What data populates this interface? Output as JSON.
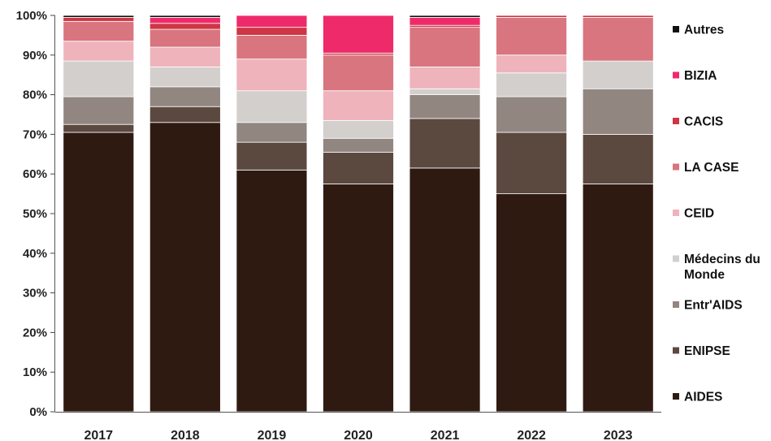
{
  "chart_data": {
    "type": "bar",
    "stacked": true,
    "categories": [
      "2017",
      "2018",
      "2019",
      "2020",
      "2021",
      "2022",
      "2023"
    ],
    "y_ticks": [
      "0%",
      "10%",
      "20%",
      "30%",
      "40%",
      "50%",
      "60%",
      "70%",
      "80%",
      "90%",
      "100%"
    ],
    "ylim": [
      0,
      100
    ],
    "grid": false,
    "legend_position": "right",
    "series": [
      {
        "name": "AIDES",
        "color": "#2f1a12",
        "values": [
          70.5,
          73,
          61,
          57.5,
          61.5,
          55,
          57.5
        ]
      },
      {
        "name": "ENIPSE",
        "color": "#5b4940",
        "values": [
          2,
          4,
          7,
          8,
          12.5,
          15.5,
          12.5
        ]
      },
      {
        "name": "Entr'AIDS",
        "color": "#928681",
        "values": [
          7,
          5,
          5,
          3.5,
          6,
          9,
          11.5
        ]
      },
      {
        "name": "Médecins du Monde",
        "color": "#d2cfcd",
        "values": [
          9,
          5,
          8,
          4.5,
          1.5,
          6,
          7
        ]
      },
      {
        "name": "CEID",
        "color": "#efb3bb",
        "values": [
          5,
          5,
          8,
          7.5,
          5.5,
          4.5,
          0
        ]
      },
      {
        "name": "LA CASE",
        "color": "#d8757f",
        "values": [
          5,
          4.5,
          6,
          9,
          10,
          9.5,
          11
        ]
      },
      {
        "name": "CACIS",
        "color": "#cf3545",
        "values": [
          1,
          1.5,
          2,
          0.5,
          0.5,
          0.5,
          0.5
        ]
      },
      {
        "name": "BIZIA",
        "color": "#ef2a6a",
        "values": [
          0,
          1.5,
          3,
          9.5,
          2,
          0,
          0
        ]
      },
      {
        "name": "Autres",
        "color": "#111111",
        "values": [
          0.5,
          0.5,
          0,
          0,
          0.5,
          0,
          0
        ]
      }
    ],
    "legend_order": [
      "Autres",
      "BIZIA",
      "CACIS",
      "LA CASE",
      "CEID",
      "Médecins du Monde",
      "Entr'AIDS",
      "ENIPSE",
      "AIDES"
    ],
    "legend_lines": {
      "Médecins du Monde": [
        "Médecins du",
        "Monde"
      ]
    }
  }
}
